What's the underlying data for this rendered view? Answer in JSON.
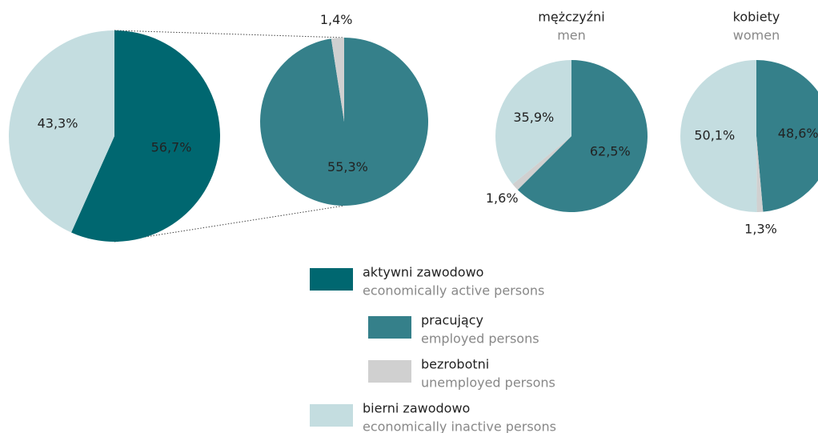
{
  "chart_data": [
    {
      "type": "pie",
      "values": [
        56.7,
        43.3
      ],
      "value_labels": [
        "56,7%",
        "43,3%"
      ],
      "colors": [
        "#006770",
        "#c4dde0"
      ]
    },
    {
      "type": "pie",
      "values": [
        55.3,
        1.4
      ],
      "value_labels": [
        "55,3%",
        "1,4%"
      ],
      "colors": [
        "#35808a",
        "#d0d0d0"
      ]
    },
    {
      "type": "pie",
      "title": "mężczyźni",
      "subtitle": "men",
      "values": [
        62.5,
        1.6,
        35.9
      ],
      "value_labels": [
        "62,5%",
        "1,6%",
        "35,9%"
      ],
      "colors": [
        "#35808a",
        "#d0d0d0",
        "#c4dde0"
      ]
    },
    {
      "type": "pie",
      "title": "kobiety",
      "subtitle": "women",
      "values": [
        48.6,
        1.3,
        50.1
      ],
      "value_labels": [
        "48,6%",
        "1,3%",
        "50,1%"
      ],
      "colors": [
        "#35808a",
        "#d0d0d0",
        "#c4dde0"
      ]
    }
  ],
  "legend": [
    {
      "label": "aktywni zawodowo",
      "sublabel": "economically active persons",
      "color": "#006770"
    },
    {
      "label": "pracujący",
      "sublabel": "employed persons",
      "color": "#35808a"
    },
    {
      "label": "bezrobotni",
      "sublabel": "unemployed persons",
      "color": "#d0d0d0"
    },
    {
      "label": "bierni zawodowo",
      "sublabel": "economically inactive persons",
      "color": "#c4dde0"
    }
  ]
}
